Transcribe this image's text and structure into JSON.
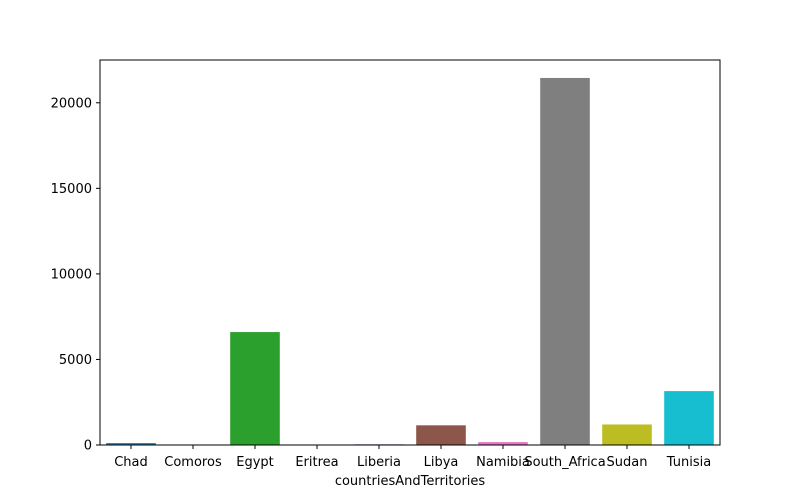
{
  "chart_data": {
    "type": "bar",
    "categories": [
      "Chad",
      "Comoros",
      "Egypt",
      "Eritrea",
      "Liberia",
      "Libya",
      "Namibia",
      "South_Africa",
      "Sudan",
      "Tunisia"
    ],
    "values": [
      110,
      0,
      6600,
      5,
      40,
      1150,
      170,
      21450,
      1200,
      3150
    ],
    "colors": [
      "#1f77b4",
      "#ff7f0e",
      "#2ca02c",
      "#d62728",
      "#9467bd",
      "#8c564b",
      "#e377c2",
      "#7f7f7f",
      "#bcbd22",
      "#17becf"
    ],
    "xlabel": "countriesAndTerritories",
    "ylabel": "",
    "ylim": [
      0,
      22500
    ],
    "yticks": [
      0,
      5000,
      10000,
      15000,
      20000
    ],
    "grid": false,
    "legend": "none"
  }
}
